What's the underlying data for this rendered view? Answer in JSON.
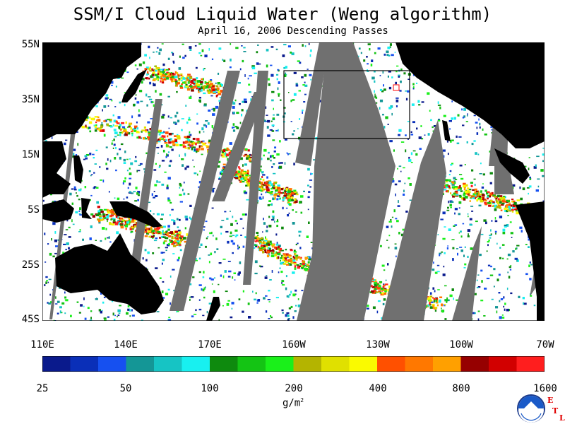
{
  "title": "SSM/I Cloud Liquid Water (Weng algorithm)",
  "subtitle": "April 16, 2006  Descending Passes",
  "lat_labels": [
    "55N",
    "35N",
    "15N",
    "5S",
    "25S",
    "45S"
  ],
  "lon_labels": [
    "110E",
    "140E",
    "170E",
    "160W",
    "130W",
    "100W",
    "70W"
  ],
  "colorbar": {
    "tick_labels": [
      "25",
      "50",
      "100",
      "200",
      "400",
      "800",
      "1600"
    ],
    "units_text": "g/m",
    "units_superscript": "2",
    "colors": [
      "#0a1a8c",
      "#0a2fb8",
      "#1650f0",
      "#149696",
      "#16c4c4",
      "#18f0f0",
      "#0e8a0e",
      "#14c414",
      "#1af01a",
      "#b4b400",
      "#e0e000",
      "#fafa00",
      "#ff5000",
      "#ff7800",
      "#ffa000",
      "#960000",
      "#d20000",
      "#ff1e1e"
    ]
  },
  "map": {
    "ocean_color": "#ffffff",
    "land_color": "#000000",
    "nodata_color": "#707070",
    "box_color": "#000000",
    "accent_box_color": "#ff0000"
  },
  "logo": {
    "name": "NOAA",
    "etl_letters": [
      "E",
      "T",
      "L"
    ]
  }
}
